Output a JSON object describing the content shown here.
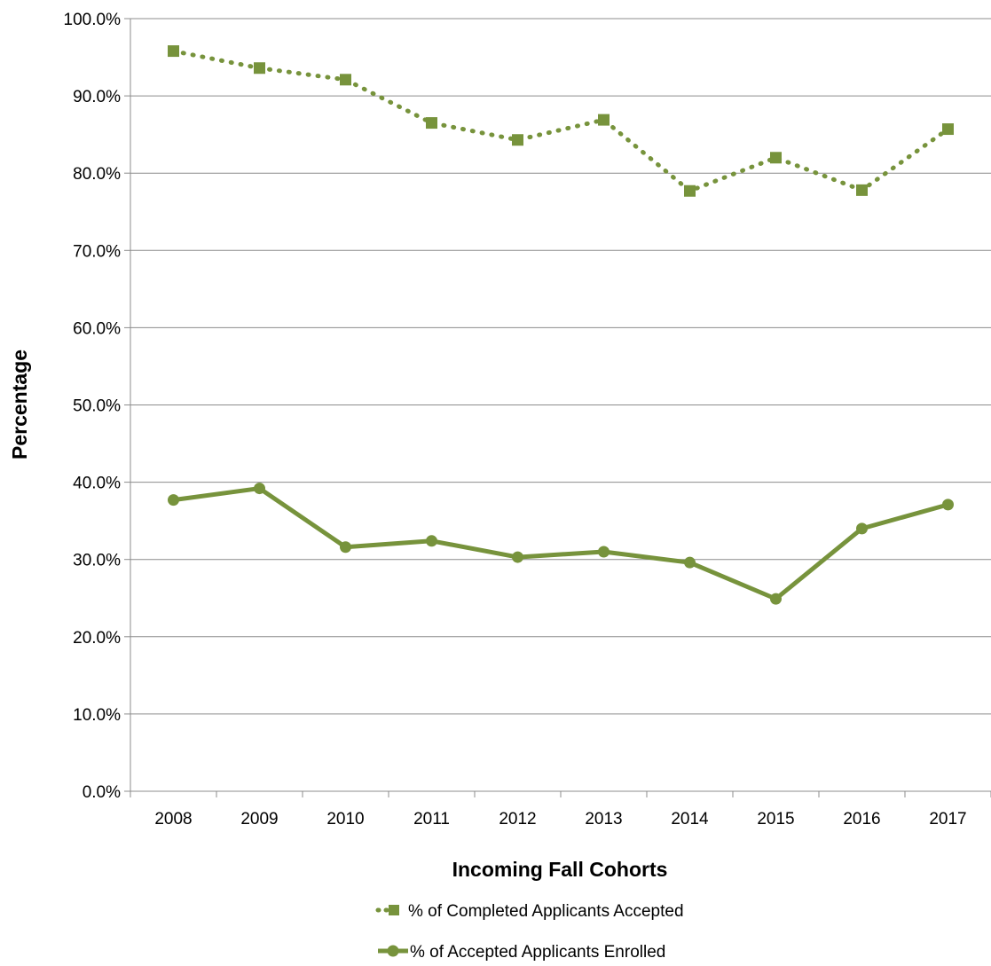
{
  "chart_data": {
    "type": "line",
    "xlabel": "Incoming Fall Cohorts",
    "ylabel": "Percentage",
    "x": [
      "2008",
      "2009",
      "2010",
      "2011",
      "2012",
      "2013",
      "2014",
      "2015",
      "2016",
      "2017"
    ],
    "ylim": [
      0,
      100
    ],
    "yticks": [
      "0.0%",
      "10.0%",
      "20.0%",
      "30.0%",
      "40.0%",
      "50.0%",
      "60.0%",
      "70.0%",
      "80.0%",
      "90.0%",
      "100.0%"
    ],
    "grid": "horizontal",
    "legend_position": "bottom",
    "series": [
      {
        "name": "% of Completed Applicants Accepted",
        "values": [
          95.8,
          93.6,
          92.1,
          86.5,
          84.3,
          86.9,
          77.7,
          82.0,
          77.8,
          85.7
        ],
        "color": "#77933c",
        "line_style": "dotted",
        "marker": "square"
      },
      {
        "name": "% of Accepted  Applicants Enrolled",
        "values": [
          37.7,
          39.2,
          31.6,
          32.4,
          30.3,
          31.0,
          29.6,
          24.9,
          34.0,
          37.1
        ],
        "color": "#77933c",
        "line_style": "solid",
        "marker": "circle"
      }
    ]
  }
}
